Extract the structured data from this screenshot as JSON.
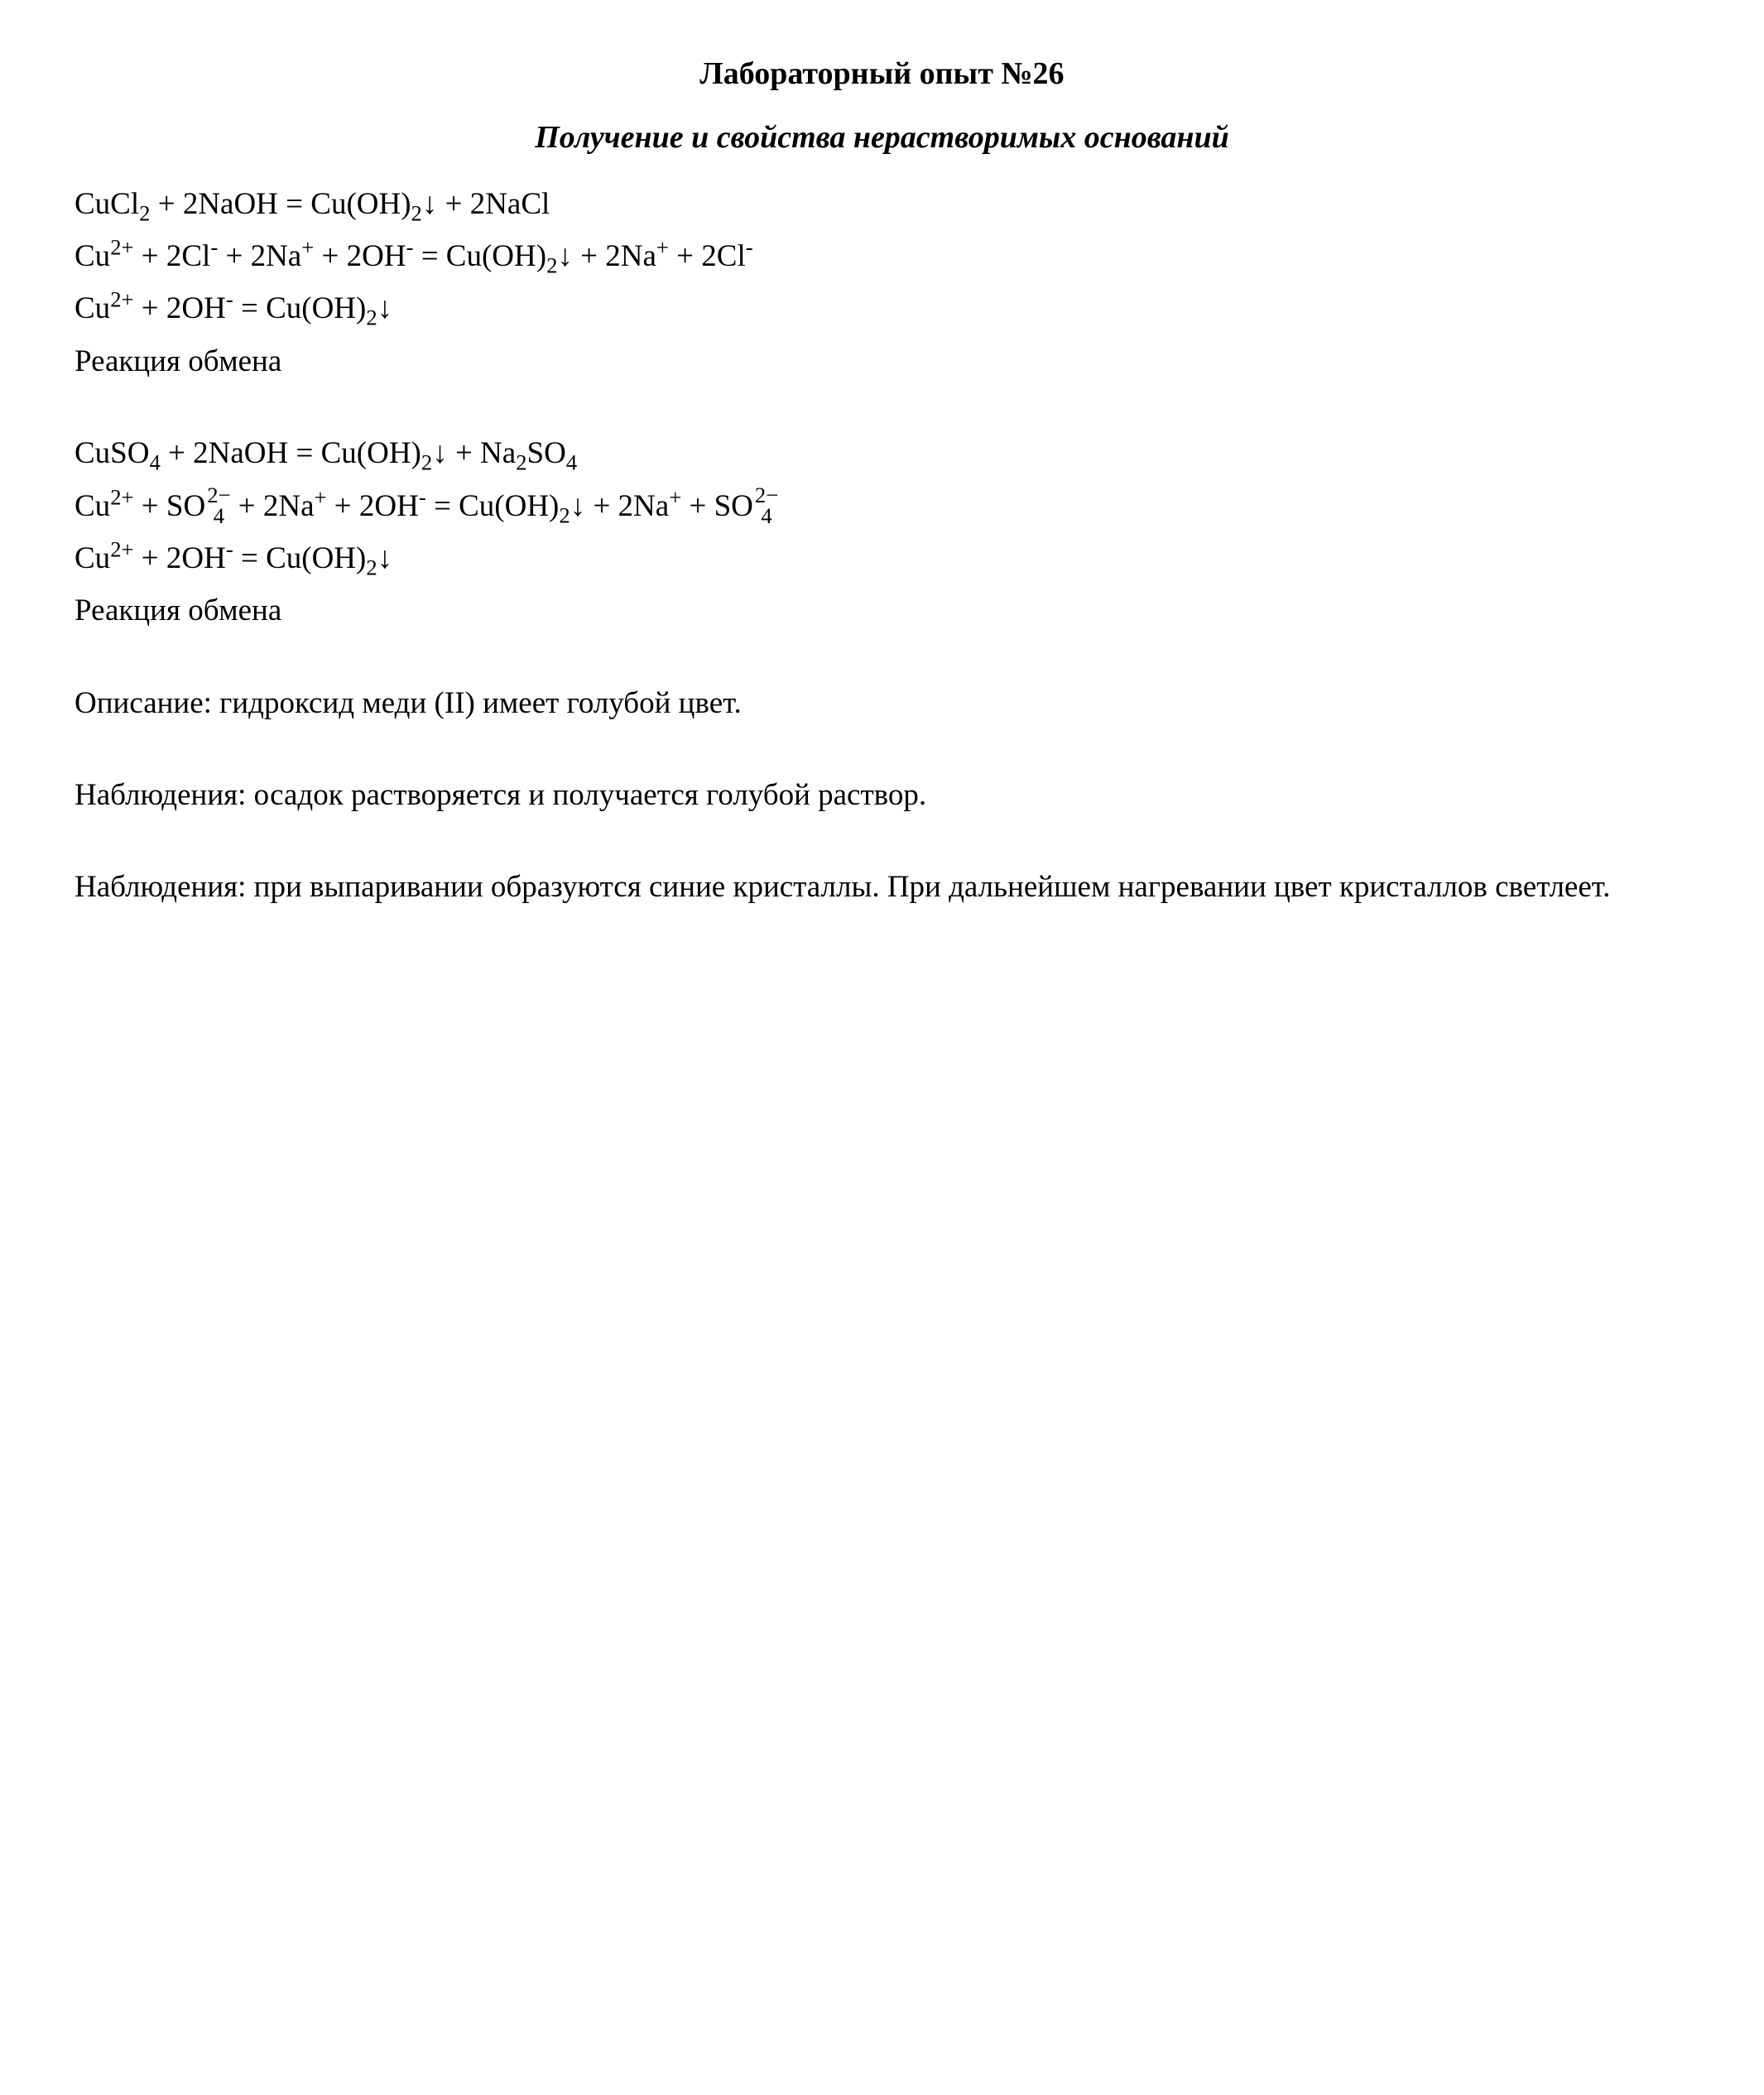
{
  "style": {
    "background_color": "#ffffff",
    "text_color": "#000000",
    "font_family": "Times New Roman",
    "body_fontsize_pt": 28,
    "title_fontsize_pt": 29,
    "line_height": 1.55
  },
  "title": "Лабораторный опыт №26",
  "subtitle": "Получение и свойства нерастворимых оснований",
  "block1": {
    "eq1": "CuCl₂ + 2NaOH = Cu(OH)₂↓ + 2NaCl",
    "eq2": "Cu²⁺ + 2Cl⁻ + 2Na⁺ + 2OH⁻ = Cu(OH)₂↓ + 2Na⁺ + 2Cl⁻",
    "eq3": "Cu²⁺ + 2OH⁻ = Cu(OH)₂↓",
    "label": "Реакция обмена"
  },
  "block2": {
    "eq1": "CuSO₄ + 2NaOH = Cu(OH)₂↓ + Na₂SO₄",
    "eq2": "Cu²⁺ + SO₄²⁻ + 2Na⁺ + 2OH⁻ = Cu(OH)₂↓ + 2Na⁺ + SO₄²⁻",
    "eq3": "Cu²⁺ + 2OH⁻ = Cu(OH)₂↓",
    "label": "Реакция обмена"
  },
  "description": "Описание: гидроксид меди (II) имеет голубой цвет.",
  "observation1": "Наблюдения: осадок растворяется и получается голубой раствор.",
  "observation2": "Наблюдения: при выпаривании образуются синие кристаллы. При дальнейшем нагревании цвет кристаллов светлеет."
}
